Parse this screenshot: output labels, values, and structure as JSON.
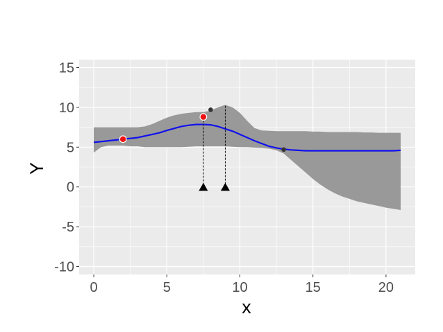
{
  "chart_data": {
    "type": "line",
    "xlabel": "x",
    "ylabel": "Y",
    "xlim": [
      -1,
      22
    ],
    "ylim": [
      -11,
      16
    ],
    "x_ticks": [
      0,
      5,
      10,
      15,
      20
    ],
    "x_tick_labels": [
      "0",
      "5",
      "10",
      "15",
      "20"
    ],
    "y_ticks": [
      -10,
      -5,
      0,
      5,
      10,
      15
    ],
    "y_tick_labels": [
      "-10",
      "-5",
      "0",
      "5",
      "10",
      "15"
    ],
    "grid": true,
    "legend": "none",
    "colors": {
      "panel": "#ebebeb",
      "grid": "#ffffff",
      "band": "#999999",
      "mean_line": "#1010ee",
      "red_points": "#ee1111",
      "black_points": "#333333",
      "markers": "#000000"
    },
    "series": [
      {
        "type": "line",
        "x": [
          0,
          0.5,
          1,
          1.5,
          2,
          2.5,
          3,
          3.5,
          4,
          4.5,
          5,
          5.5,
          6,
          6.5,
          7,
          7.5,
          8,
          8.5,
          9,
          9.5,
          10,
          10.5,
          11,
          11.5,
          12,
          12.5,
          13,
          13.5,
          14,
          14.5,
          15,
          15.5,
          16,
          16.5,
          17,
          17.5,
          18,
          18.5,
          19,
          19.5,
          20,
          20.5,
          21
        ],
        "y": [
          5.6,
          5.7,
          5.8,
          5.9,
          6.0,
          6.1,
          6.2,
          6.4,
          6.6,
          6.8,
          7.1,
          7.35,
          7.6,
          7.75,
          7.85,
          7.85,
          7.8,
          7.6,
          7.3,
          7.0,
          6.6,
          6.2,
          5.8,
          5.45,
          5.1,
          4.9,
          4.75,
          4.65,
          4.6,
          4.55,
          4.55,
          4.55,
          4.55,
          4.55,
          4.55,
          4.55,
          4.55,
          4.55,
          4.55,
          4.55,
          4.55,
          4.55,
          4.6
        ]
      },
      {
        "type": "area",
        "x": [
          0,
          0.5,
          1,
          1.5,
          2,
          2.5,
          3,
          3.5,
          4,
          4.5,
          5,
          5.5,
          6,
          6.5,
          7,
          7.5,
          8,
          8.5,
          9,
          9.5,
          10,
          10.5,
          11,
          11.5,
          12,
          12.5,
          13,
          13.5,
          14,
          14.5,
          15,
          15.5,
          16,
          16.5,
          17,
          17.5,
          18,
          18.5,
          19,
          19.5,
          20,
          20.5,
          21
        ],
        "upper": [
          7.5,
          7.5,
          7.5,
          7.5,
          7.5,
          7.5,
          7.5,
          7.6,
          7.9,
          8.3,
          8.7,
          9.0,
          9.2,
          9.3,
          9.4,
          9.4,
          9.6,
          10.0,
          10.3,
          10.0,
          9.3,
          8.3,
          7.4,
          7.1,
          7.05,
          7.0,
          7.0,
          7.0,
          7.0,
          7.0,
          6.95,
          6.95,
          6.9,
          6.9,
          6.9,
          6.9,
          6.9,
          6.85,
          6.85,
          6.8,
          6.8,
          6.8,
          6.8
        ],
        "lower": [
          4.3,
          5.0,
          5.2,
          5.2,
          5.2,
          5.1,
          5.1,
          5.0,
          5.0,
          5.0,
          5.0,
          5.0,
          5.0,
          5.05,
          5.1,
          5.1,
          5.1,
          5.1,
          5.1,
          5.05,
          5.0,
          5.0,
          4.95,
          4.9,
          4.8,
          4.6,
          4.2,
          3.4,
          2.6,
          1.8,
          1.0,
          0.3,
          -0.3,
          -0.8,
          -1.2,
          -1.5,
          -1.8,
          -2.0,
          -2.2,
          -2.4,
          -2.6,
          -2.75,
          -2.9
        ]
      },
      {
        "type": "scatter",
        "x": [
          2,
          7.5
        ],
        "y": [
          6.0,
          8.8
        ]
      },
      {
        "type": "scatter",
        "x": [
          8,
          13
        ],
        "y": [
          9.7,
          4.7
        ]
      },
      {
        "type": "triangle_markers",
        "x": [
          7.5,
          9.0
        ],
        "y": [
          0,
          0
        ],
        "line_top": [
          8.8,
          10.2
        ]
      }
    ]
  }
}
